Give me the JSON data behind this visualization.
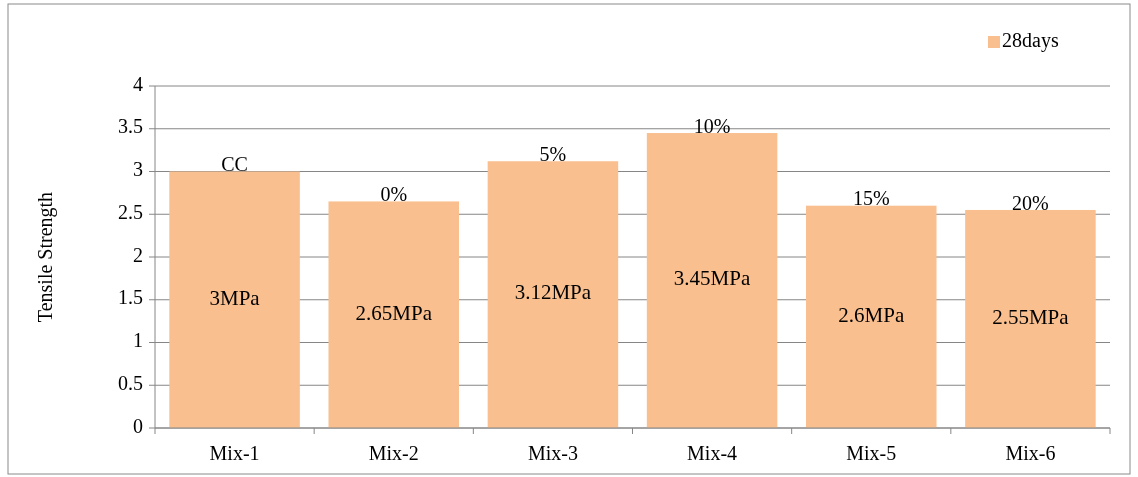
{
  "chart_data": {
    "type": "bar",
    "ylabel": "Tensile Strength",
    "categories": [
      "Mix-1",
      "Mix-2",
      "Mix-3",
      "Mix-4",
      "Mix-5",
      "Mix-6"
    ],
    "series": [
      {
        "name": "28days",
        "color": "#f9bf8f",
        "values": [
          3,
          2.65,
          3.12,
          3.45,
          2.6,
          2.55
        ],
        "value_labels": [
          "3MPa",
          "2.65MPa",
          "3.12MPa",
          "3.45MPa",
          "2.6MPa",
          "2.55MPa"
        ]
      }
    ],
    "annotations": [
      {
        "text": "CC",
        "x": "Mix-1",
        "y": 3
      },
      {
        "text": "0%",
        "x": "Mix-2",
        "y": 2.65
      },
      {
        "text": "5%",
        "x": "Mix-3",
        "y": 3.12
      },
      {
        "text": "10%",
        "x": "Mix-4",
        "y": 3.45
      },
      {
        "text": "15%",
        "x": "Mix-5",
        "y": 2.6
      },
      {
        "text": "20%",
        "x": "Mix-6",
        "y": 2.55
      }
    ],
    "ylim": [
      0,
      4
    ],
    "yticks": [
      0,
      0.5,
      1,
      1.5,
      2,
      2.5,
      3,
      3.5,
      4
    ],
    "grid": "y",
    "legend": "top right"
  }
}
